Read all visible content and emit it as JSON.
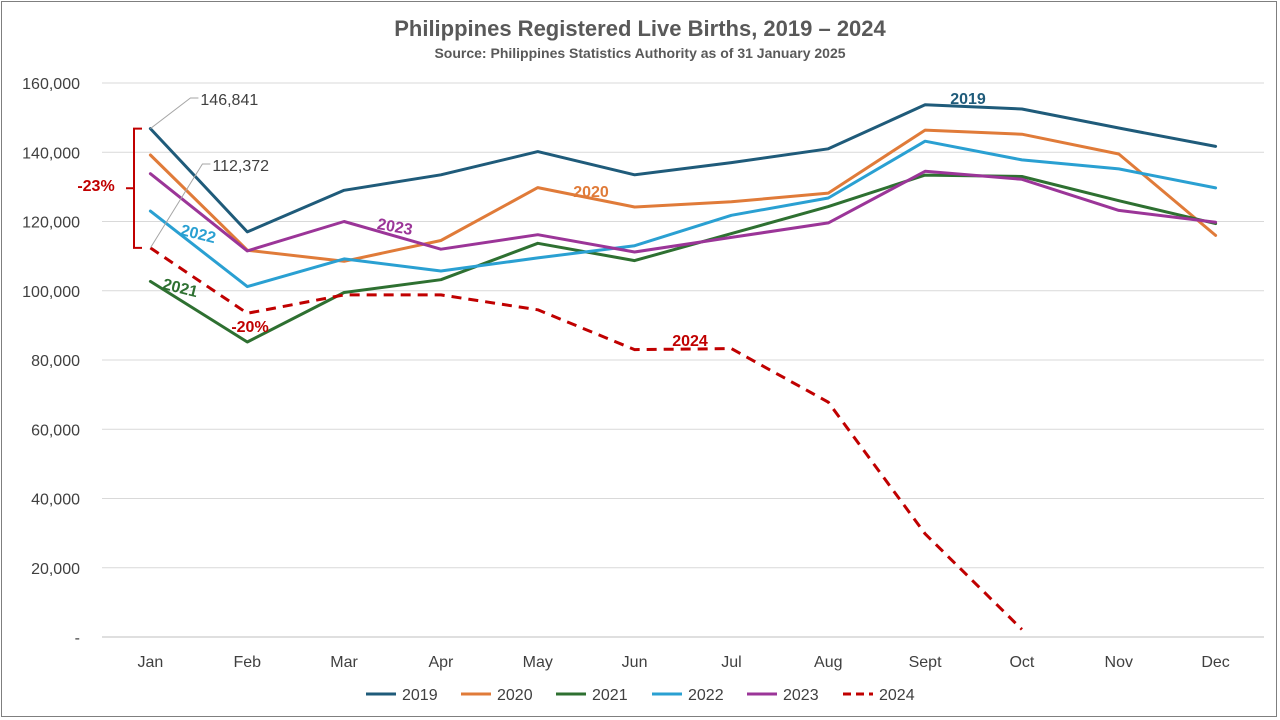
{
  "chart_data": {
    "type": "line",
    "title": "Philippines Registered Live Births, 2019 – 2024",
    "subtitle": "Source: Philippines Statistics Authority as of 31 January 2025",
    "categories": [
      "Jan",
      "Feb",
      "Mar",
      "Apr",
      "May",
      "Jun",
      "Jul",
      "Aug",
      "Sept",
      "Oct",
      "Nov",
      "Dec"
    ],
    "ylim": [
      0,
      160000
    ],
    "yticks": [
      0,
      20000,
      40000,
      60000,
      80000,
      100000,
      120000,
      140000,
      160000
    ],
    "ytick_labels": [
      "-",
      "20,000",
      "40,000",
      "60,000",
      "80,000",
      "100,000",
      "120,000",
      "140,000",
      "160,000"
    ],
    "grid": true,
    "legend_position": "bottom",
    "series": [
      {
        "name": "2019",
        "color": "#1f5b7a",
        "dashed": false,
        "values": [
          146841,
          117000,
          129000,
          133500,
          140200,
          133500,
          137000,
          141000,
          153700,
          152500,
          147000,
          141700
        ]
      },
      {
        "name": "2020",
        "color": "#e07b39",
        "dashed": false,
        "values": [
          139200,
          111700,
          108500,
          114500,
          129800,
          124200,
          125700,
          128200,
          146400,
          145200,
          139500,
          116000
        ]
      },
      {
        "name": "2021",
        "color": "#2e7031",
        "dashed": false,
        "values": [
          102700,
          85200,
          99500,
          103200,
          113700,
          108700,
          116500,
          124300,
          133400,
          133000,
          126000,
          119400
        ]
      },
      {
        "name": "2022",
        "color": "#2aa0d2",
        "dashed": false,
        "values": [
          123000,
          101200,
          109200,
          105700,
          109500,
          113000,
          121800,
          126800,
          143200,
          137800,
          135200,
          129700
        ]
      },
      {
        "name": "2023",
        "color": "#9b3598",
        "dashed": false,
        "values": [
          133800,
          111500,
          120000,
          112000,
          116200,
          111200,
          115400,
          119600,
          134500,
          132200,
          123200,
          119800
        ]
      },
      {
        "name": "2024",
        "color": "#c00000",
        "dashed": true,
        "values": [
          112372,
          93500,
          98800,
          98800,
          94500,
          83000,
          83300,
          67800,
          29800,
          2200,
          null,
          null
        ]
      }
    ],
    "annotations": [
      {
        "text": "146,841",
        "color": "#404040"
      },
      {
        "text": "112,372",
        "color": "#404040"
      },
      {
        "text": "-23%",
        "color": "#c00000"
      },
      {
        "text": "-20%",
        "color": "#c00000"
      },
      {
        "text": "2019",
        "color": "#1f5b7a"
      },
      {
        "text": "2020",
        "color": "#e07b39"
      },
      {
        "text": "2021",
        "color": "#2e7031"
      },
      {
        "text": "2022",
        "color": "#2aa0d2"
      },
      {
        "text": "2023",
        "color": "#9b3598"
      },
      {
        "text": "2024",
        "color": "#c00000"
      }
    ]
  }
}
